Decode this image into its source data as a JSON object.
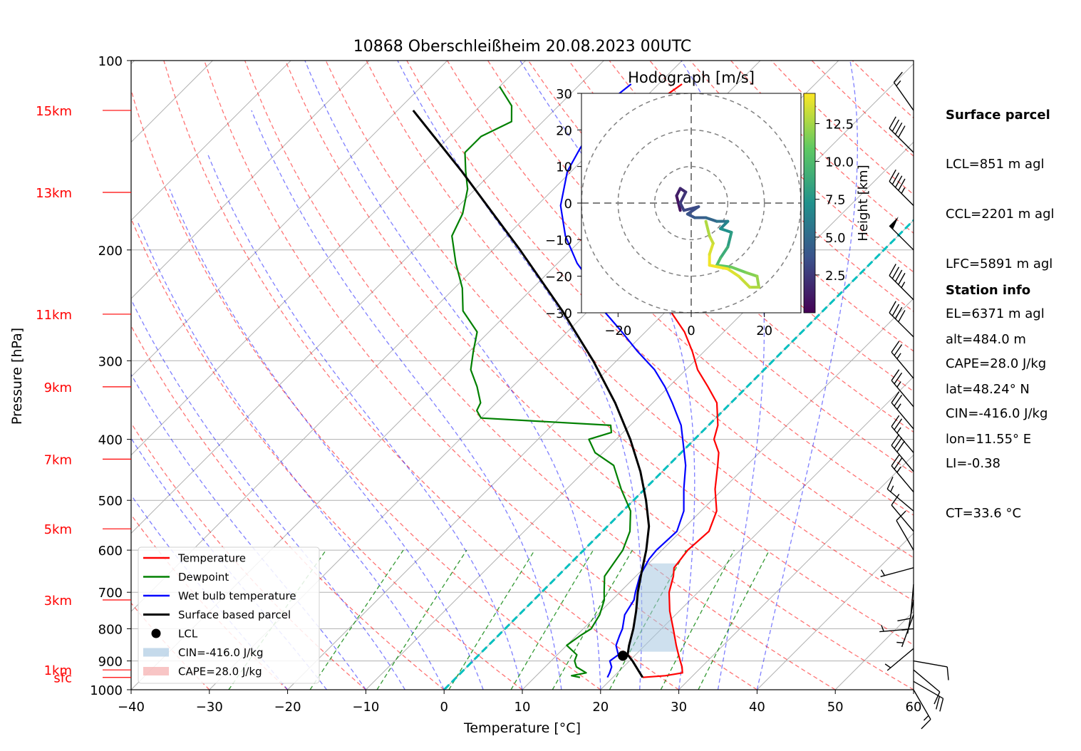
{
  "title": "10868 Oberschleißheim 20.08.2023 00UTC",
  "chart_data": [
    {
      "type": "line",
      "subtype": "skew-t log-p",
      "xlabel": "Temperature [°C]",
      "ylabel": "Pressure [hPa]",
      "xlim": [
        -40,
        60
      ],
      "ylim": [
        1000,
        100
      ],
      "yscale": "log",
      "grid": true,
      "legend_position": "lower-left",
      "x_ticks": [
        "−40",
        "−30",
        "−20",
        "−10",
        "0",
        "10",
        "20",
        "30",
        "40",
        "50",
        "60"
      ],
      "y_ticks": [
        {
          "p": 100,
          "label": "100"
        },
        {
          "p": 200,
          "label": "200"
        },
        {
          "p": 300,
          "label": "300"
        },
        {
          "p": 400,
          "label": "400"
        },
        {
          "p": 500,
          "label": "500"
        },
        {
          "p": 600,
          "label": "600"
        },
        {
          "p": 700,
          "label": "700"
        },
        {
          "p": 800,
          "label": "800"
        },
        {
          "p": 900,
          "label": "900"
        },
        {
          "p": 1000,
          "label": "1000"
        }
      ],
      "height_ticks": [
        {
          "p": 956,
          "label": "sfc"
        },
        {
          "p": 930,
          "label": "1km"
        },
        {
          "p": 720,
          "label": "3km"
        },
        {
          "p": 555,
          "label": "5km"
        },
        {
          "p": 430,
          "label": "7km"
        },
        {
          "p": 330,
          "label": "9km"
        },
        {
          "p": 253,
          "label": "11km"
        },
        {
          "p": 162,
          "label": "13km"
        },
        {
          "p": 120,
          "label": "15km"
        }
      ],
      "series": [
        {
          "name": "Temperature",
          "color": "#ff0000",
          "points": [
            [
              956,
              23.8
            ],
            [
              950,
              26.5
            ],
            [
              940,
              28.3
            ],
            [
              920,
              27.5
            ],
            [
              900,
              26.5
            ],
            [
              880,
              25.5
            ],
            [
              850,
              24.0
            ],
            [
              800,
              21.5
            ],
            [
              750,
              18.8
            ],
            [
              700,
              16.3
            ],
            [
              660,
              14.8
            ],
            [
              640,
              13.8
            ],
            [
              600,
              13.3
            ],
            [
              560,
              13.6
            ],
            [
              520,
              12.0
            ],
            [
              480,
              9.0
            ],
            [
              440,
              6.3
            ],
            [
              420,
              4.8
            ],
            [
              400,
              2.5
            ],
            [
              380,
              1.2
            ],
            [
              350,
              -1.8
            ],
            [
              330,
              -5.0
            ],
            [
              310,
              -8.5
            ],
            [
              290,
              -11.5
            ],
            [
              270,
              -15.0
            ],
            [
              250,
              -19.5
            ],
            [
              230,
              -24.5
            ],
            [
              210,
              -30.5
            ],
            [
              190,
              -36.3
            ],
            [
              170,
              -41.5
            ],
            [
              150,
              -45.0
            ],
            [
              138,
              -45.8
            ],
            [
              125,
              -46.6
            ],
            [
              115,
              -47.8
            ],
            [
              109,
              -47.0
            ]
          ]
        },
        {
          "name": "Dewpoint",
          "color": "#008000",
          "points": [
            [
              956,
              15.8
            ],
            [
              950,
              14.5
            ],
            [
              940,
              16.0
            ],
            [
              920,
              14.0
            ],
            [
              900,
              13.0
            ],
            [
              880,
              12.5
            ],
            [
              850,
              10.0
            ],
            [
              820,
              10.5
            ],
            [
              800,
              11.0
            ],
            [
              760,
              10.3
            ],
            [
              720,
              9.0
            ],
            [
              700,
              8.0
            ],
            [
              660,
              6.0
            ],
            [
              600,
              5.0
            ],
            [
              560,
              3.5
            ],
            [
              520,
              1.0
            ],
            [
              480,
              -3.0
            ],
            [
              440,
              -7.0
            ],
            [
              420,
              -11.0
            ],
            [
              400,
              -13.5
            ],
            [
              390,
              -11.5
            ],
            [
              380,
              -12.5
            ],
            [
              370,
              -30.0
            ],
            [
              360,
              -31.5
            ],
            [
              350,
              -32.0
            ],
            [
              330,
              -34.5
            ],
            [
              310,
              -37.5
            ],
            [
              290,
              -39.5
            ],
            [
              270,
              -41.5
            ],
            [
              250,
              -46.0
            ],
            [
              230,
              -49.0
            ],
            [
              210,
              -53.0
            ],
            [
              190,
              -57.0
            ],
            [
              175,
              -58.5
            ],
            [
              160,
              -61.0
            ],
            [
              150,
              -63.5
            ],
            [
              140,
              -66.0
            ],
            [
              132,
              -66.0
            ],
            [
              125,
              -64.0
            ],
            [
              118,
              -66.0
            ],
            [
              110,
              -70.0
            ]
          ]
        },
        {
          "name": "Wet bulb temperature",
          "color": "#0000ff",
          "points": [
            [
              956,
              19.3
            ],
            [
              940,
              19.0
            ],
            [
              920,
              18.5
            ],
            [
              900,
              17.5
            ],
            [
              880,
              17.8
            ],
            [
              850,
              16.3
            ],
            [
              820,
              15.5
            ],
            [
              800,
              15.0
            ],
            [
              760,
              13.5
            ],
            [
              720,
              12.8
            ],
            [
              700,
              12.0
            ],
            [
              660,
              10.5
            ],
            [
              620,
              9.5
            ],
            [
              600,
              9.3
            ],
            [
              560,
              9.5
            ],
            [
              520,
              7.8
            ],
            [
              480,
              5.0
            ],
            [
              440,
              2.2
            ],
            [
              400,
              -1.5
            ],
            [
              380,
              -3.5
            ],
            [
              350,
              -7.5
            ],
            [
              330,
              -10.5
            ],
            [
              310,
              -14.0
            ],
            [
              290,
              -18.5
            ],
            [
              270,
              -23.0
            ],
            [
              250,
              -28.0
            ],
            [
              230,
              -32.0
            ],
            [
              210,
              -37.5
            ],
            [
              190,
              -42.5
            ],
            [
              170,
              -47.0
            ],
            [
              150,
              -50.5
            ],
            [
              138,
              -51.8
            ],
            [
              125,
              -53.0
            ],
            [
              115,
              -54.0
            ],
            [
              109,
              -53.5
            ]
          ]
        },
        {
          "name": "Surface based parcel",
          "color": "#000000",
          "points": [
            [
              956,
              23.8
            ],
            [
              900,
              20.4
            ],
            [
              880,
              19.0
            ],
            [
              851,
              18.0
            ],
            [
              800,
              16.4
            ],
            [
              750,
              14.5
            ],
            [
              700,
              12.3
            ],
            [
              650,
              10.2
            ],
            [
              600,
              8.0
            ],
            [
              550,
              5.3
            ],
            [
              500,
              1.6
            ],
            [
              450,
              -2.8
            ],
            [
              400,
              -8.2
            ],
            [
              350,
              -14.8
            ],
            [
              300,
              -23.0
            ],
            [
              250,
              -33.3
            ],
            [
              200,
              -46.5
            ],
            [
              150,
              -64.0
            ],
            [
              120,
              -78.0
            ]
          ]
        }
      ],
      "lcl": {
        "name": "LCL",
        "p": 883,
        "t": 18.5
      },
      "cin_label": "CIN=-416.0 J/kg",
      "cape_label": "CAPE=28.0 J/kg",
      "cin_area_top_p": 870,
      "freezing_line_t": 0,
      "wind_barbs": [
        {
          "p": 1000,
          "spd": 15,
          "dir": 150
        },
        {
          "p": 970,
          "spd": 20,
          "dir": 120
        },
        {
          "p": 930,
          "spd": 10,
          "dir": 130
        },
        {
          "p": 900,
          "spd": 10,
          "dir": 100
        },
        {
          "p": 860,
          "spd": 5,
          "dir": 230
        },
        {
          "p": 800,
          "spd": 5,
          "dir": 265
        },
        {
          "p": 760,
          "spd": 5,
          "dir": 200
        },
        {
          "p": 720,
          "spd": 5,
          "dir": 190
        },
        {
          "p": 680,
          "spd": 10,
          "dir": 185
        },
        {
          "p": 640,
          "spd": 5,
          "dir": 255
        },
        {
          "p": 600,
          "spd": 10,
          "dir": 330
        },
        {
          "p": 560,
          "spd": 10,
          "dir": 320
        },
        {
          "p": 520,
          "spd": 15,
          "dir": 310
        },
        {
          "p": 485,
          "spd": 25,
          "dir": 320
        },
        {
          "p": 450,
          "spd": 30,
          "dir": 320
        },
        {
          "p": 420,
          "spd": 25,
          "dir": 320
        },
        {
          "p": 385,
          "spd": 25,
          "dir": 320
        },
        {
          "p": 355,
          "spd": 25,
          "dir": 320
        },
        {
          "p": 320,
          "spd": 25,
          "dir": 320
        },
        {
          "p": 275,
          "spd": 40,
          "dir": 315
        },
        {
          "p": 240,
          "spd": 45,
          "dir": 315
        },
        {
          "p": 200,
          "spd": 50,
          "dir": 315
        },
        {
          "p": 170,
          "spd": 45,
          "dir": 315
        },
        {
          "p": 140,
          "spd": 40,
          "dir": 315
        },
        {
          "p": 120,
          "spd": 15,
          "dir": 325
        }
      ]
    },
    {
      "type": "line",
      "subtype": "hodograph",
      "title": "Hodograph [m/s]",
      "xlim": [
        -30,
        30
      ],
      "ylim": [
        -30,
        30
      ],
      "ring_radii": [
        10,
        20,
        30
      ],
      "x_ticks": [
        "−20",
        "0",
        "20"
      ],
      "y_ticks": [
        "−30",
        "−20",
        "−10",
        "0",
        "10",
        "20",
        "30"
      ],
      "colorbar": {
        "label": "Height [km]",
        "min": 0,
        "max": 14.5,
        "ticks": [
          "2.5",
          "5.0",
          "7.5",
          "10.0",
          "12.5"
        ],
        "colormap": "viridis"
      },
      "points": [
        [
          0.5,
          -3.0,
          -2.0
        ],
        [
          1.0,
          -4.0,
          2.0
        ],
        [
          1.5,
          -3.0,
          4.0
        ],
        [
          2.0,
          -1.5,
          3.0
        ],
        [
          2.5,
          -3.0,
          0.0
        ],
        [
          3.0,
          -2.0,
          -2.0
        ],
        [
          3.3,
          2.0,
          -1.0
        ],
        [
          3.6,
          -1.0,
          -3.0
        ],
        [
          4.0,
          1.0,
          -4.0
        ],
        [
          4.5,
          4.0,
          -4.0
        ],
        [
          5.0,
          7.0,
          -5.0
        ],
        [
          6.0,
          10.0,
          -5.0
        ],
        [
          7.0,
          8.0,
          -7.0
        ],
        [
          7.5,
          11.0,
          -8.0
        ],
        [
          8.5,
          10.0,
          -12.0
        ],
        [
          9.5,
          8.0,
          -15.0
        ],
        [
          10.5,
          7.0,
          -17.0
        ],
        [
          11.0,
          11.0,
          -17.5
        ],
        [
          11.5,
          15.0,
          -19.0
        ],
        [
          12.0,
          18.0,
          -20.0
        ],
        [
          12.5,
          18.5,
          -23.0
        ],
        [
          13.0,
          16.0,
          -23.0
        ],
        [
          13.5,
          13.0,
          -20.0
        ],
        [
          14.0,
          10.0,
          -18.0
        ],
        [
          14.5,
          5.0,
          -17.0
        ],
        [
          14.0,
          5.0,
          -14.0
        ],
        [
          13.5,
          6.0,
          -11.0
        ],
        [
          13.0,
          5.0,
          -9.0
        ],
        [
          12.5,
          4.0,
          -5.0
        ]
      ]
    }
  ],
  "surface_parcel": {
    "heading": "Surface parcel",
    "lines": [
      "LCL=851 m agl",
      "CCL=2201 m agl",
      "LFC=5891 m agl",
      "EL=6371 m agl",
      "CAPE=28.0 J/kg",
      "CIN=-416.0 J/kg",
      "LI=-0.38",
      "CT=33.6 °C"
    ]
  },
  "station_info": {
    "heading": "Station info",
    "lines": [
      "alt=484.0 m",
      "lat=48.24° N",
      "lon=11.55° E"
    ]
  },
  "colors": {
    "temperature": "#ff0000",
    "dewpoint": "#008000",
    "wetbulb": "#0000ff",
    "parcel": "#000000",
    "freezing": "#00bfbf",
    "dry_adiabat": "#ff0000",
    "moist_adiabat": "#0000ff",
    "mixing_ratio": "#008000",
    "cin_fill": "#a6c6e0",
    "cape_fill": "#f4a6a6",
    "height_label": "#ff0000"
  }
}
